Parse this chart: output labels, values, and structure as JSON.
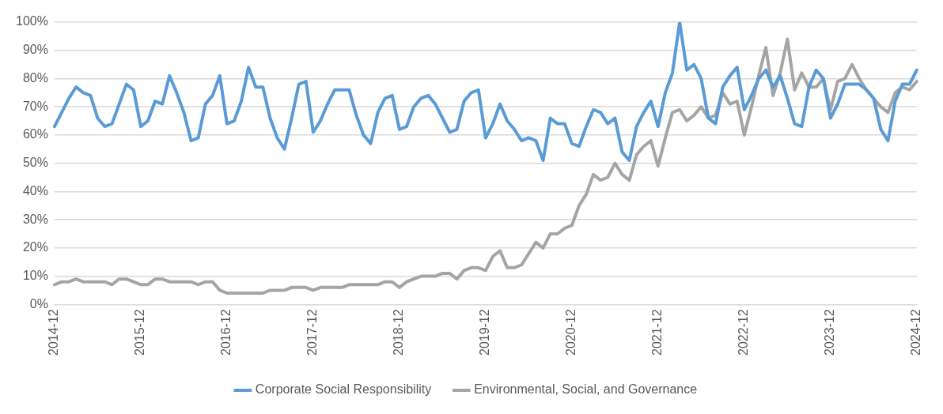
{
  "chart_data": {
    "type": "line",
    "categories": [
      "2014-12",
      null,
      null,
      null,
      null,
      null,
      null,
      null,
      null,
      null,
      null,
      null,
      "2015-12",
      null,
      null,
      null,
      null,
      null,
      null,
      null,
      null,
      null,
      null,
      null,
      "2016-12",
      null,
      null,
      null,
      null,
      null,
      null,
      null,
      null,
      null,
      null,
      null,
      "2017-12",
      null,
      null,
      null,
      null,
      null,
      null,
      null,
      null,
      null,
      null,
      null,
      "2018-12",
      null,
      null,
      null,
      null,
      null,
      null,
      null,
      null,
      null,
      null,
      null,
      "2019-12",
      null,
      null,
      null,
      null,
      null,
      null,
      null,
      null,
      null,
      null,
      null,
      "2020-12",
      null,
      null,
      null,
      null,
      null,
      null,
      null,
      null,
      null,
      null,
      null,
      "2021-12",
      null,
      null,
      null,
      null,
      null,
      null,
      null,
      null,
      null,
      null,
      null,
      "2022-12",
      null,
      null,
      null,
      null,
      null,
      null,
      null,
      null,
      null,
      null,
      null,
      "2023-12",
      null,
      null,
      null,
      null,
      null,
      null,
      null,
      null,
      null,
      null,
      null,
      "2024-12"
    ],
    "series": [
      {
        "name": "Corporate Social Responsibility",
        "color": "#5b9bd5",
        "values": [
          63,
          68,
          73,
          77,
          75,
          74,
          66,
          63,
          64,
          71,
          78,
          76,
          63,
          65,
          72,
          71,
          81,
          75,
          68,
          58,
          59,
          71,
          74,
          81,
          64,
          65,
          72,
          84,
          77,
          77,
          66,
          59,
          55,
          66,
          78,
          79,
          61,
          65,
          71,
          76,
          76,
          76,
          67,
          60,
          57,
          68,
          73,
          74,
          62,
          63,
          70,
          73,
          74,
          71,
          66,
          61,
          62,
          72,
          75,
          76,
          59,
          64,
          71,
          65,
          62,
          58,
          59,
          58,
          51,
          66,
          64,
          64,
          57,
          56,
          63,
          69,
          68,
          64,
          66,
          54,
          51,
          63,
          68,
          72,
          63,
          75,
          82,
          100,
          83,
          85,
          80,
          66,
          64,
          77,
          81,
          84,
          69,
          74,
          80,
          83,
          77,
          81,
          73,
          64,
          63,
          77,
          83,
          80,
          66,
          71,
          78,
          78,
          78,
          76,
          73,
          62,
          58,
          72,
          78,
          78,
          83
        ]
      },
      {
        "name": "Environmental, Social, and Governance",
        "color": "#a5a5a5",
        "values": [
          7,
          8,
          8,
          9,
          8,
          8,
          8,
          8,
          7,
          9,
          9,
          8,
          7,
          7,
          9,
          9,
          8,
          8,
          8,
          8,
          7,
          8,
          8,
          5,
          4,
          4,
          4,
          4,
          4,
          4,
          5,
          5,
          5,
          6,
          6,
          6,
          5,
          6,
          6,
          6,
          6,
          7,
          7,
          7,
          7,
          7,
          8,
          8,
          6,
          8,
          9,
          10,
          10,
          10,
          11,
          11,
          9,
          12,
          13,
          13,
          12,
          17,
          19,
          13,
          13,
          14,
          18,
          22,
          20,
          25,
          25,
          27,
          28,
          35,
          39,
          46,
          44,
          45,
          50,
          46,
          44,
          53,
          56,
          58,
          49,
          59,
          68,
          69,
          65,
          67,
          70,
          66,
          67,
          75,
          71,
          72,
          60,
          70,
          81,
          91,
          74,
          82,
          94,
          76,
          82,
          77,
          77,
          80,
          69,
          79,
          80,
          85,
          80,
          76,
          73,
          70,
          68,
          75,
          77,
          76,
          79
        ]
      }
    ],
    "ylim": [
      0,
      100
    ],
    "yticks": [
      {
        "value": 0,
        "label": "0%"
      },
      {
        "value": 10,
        "label": "10%"
      },
      {
        "value": 20,
        "label": "20%"
      },
      {
        "value": 30,
        "label": "30%"
      },
      {
        "value": 40,
        "label": "40%"
      },
      {
        "value": 50,
        "label": "50%"
      },
      {
        "value": 60,
        "label": "60%"
      },
      {
        "value": 70,
        "label": "70%"
      },
      {
        "value": 80,
        "label": "80%"
      },
      {
        "value": 90,
        "label": "90%"
      },
      {
        "value": 100,
        "label": "100%"
      }
    ],
    "grid": "y",
    "legend": "bottom"
  }
}
